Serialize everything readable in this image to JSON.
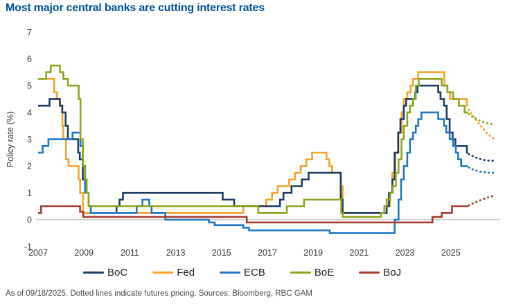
{
  "page": {
    "title": "Most major central banks are cutting interest rates",
    "footnote": "As of 09/18/2025. Dotted lines indicate futures pricing. Sources: Bloomberg, RBC GAM"
  },
  "colors": {
    "title": "#00519B",
    "footnote": "#4A4A4A",
    "axis_text": "#3B3B3B",
    "zero_line": "#C2C2C2"
  },
  "chart_data": {
    "type": "line",
    "title": "Most major central banks are cutting interest rates",
    "ylabel": "Policy rate (%)",
    "ylim": [
      -1,
      7
    ],
    "yticks": [
      -1,
      0,
      1,
      2,
      3,
      4,
      5,
      6,
      7
    ],
    "xticks": [
      2007,
      2009,
      2011,
      2013,
      2015,
      2017,
      2019,
      2021,
      2023,
      2025
    ],
    "xlim": [
      2007,
      2027.2
    ],
    "grid": "zero-line-only",
    "legend_position": "bottom",
    "note": "Step lines of policy rates; dotted segments are futures pricing beyond 09/18/2025",
    "series": [
      {
        "name": "BoC",
        "color": "#1C3C63",
        "solid": [
          [
            2007.0,
            4.25
          ],
          [
            2007.5,
            4.5
          ],
          [
            2007.95,
            4.25
          ],
          [
            2008.05,
            4.0
          ],
          [
            2008.2,
            3.5
          ],
          [
            2008.3,
            3.0
          ],
          [
            2008.75,
            2.5
          ],
          [
            2008.82,
            2.25
          ],
          [
            2008.95,
            1.5
          ],
          [
            2009.05,
            1.0
          ],
          [
            2009.2,
            0.5
          ],
          [
            2009.3,
            0.25
          ],
          [
            2010.42,
            0.5
          ],
          [
            2010.55,
            0.75
          ],
          [
            2010.7,
            1.0
          ],
          [
            2015.05,
            0.75
          ],
          [
            2015.55,
            0.5
          ],
          [
            2017.55,
            0.75
          ],
          [
            2017.7,
            1.0
          ],
          [
            2018.05,
            1.25
          ],
          [
            2018.5,
            1.5
          ],
          [
            2018.8,
            1.75
          ],
          [
            2020.2,
            0.75
          ],
          [
            2020.28,
            0.25
          ],
          [
            2022.2,
            0.5
          ],
          [
            2022.3,
            1.0
          ],
          [
            2022.45,
            1.5
          ],
          [
            2022.55,
            2.5
          ],
          [
            2022.7,
            3.25
          ],
          [
            2022.8,
            3.75
          ],
          [
            2022.95,
            4.25
          ],
          [
            2023.05,
            4.5
          ],
          [
            2023.45,
            4.75
          ],
          [
            2023.55,
            5.0
          ],
          [
            2024.45,
            4.75
          ],
          [
            2024.55,
            4.5
          ],
          [
            2024.7,
            4.25
          ],
          [
            2024.82,
            3.75
          ],
          [
            2024.95,
            3.25
          ],
          [
            2025.08,
            3.0
          ],
          [
            2025.2,
            2.75
          ],
          [
            2025.7,
            2.5
          ]
        ],
        "solid_end": 2025.75,
        "dotted": [
          [
            2025.78,
            2.45
          ],
          [
            2025.95,
            2.38
          ],
          [
            2026.12,
            2.31
          ],
          [
            2026.3,
            2.26
          ],
          [
            2026.5,
            2.22
          ],
          [
            2026.7,
            2.2
          ],
          [
            2026.9,
            2.2
          ]
        ]
      },
      {
        "name": "Fed",
        "color": "#F7A228",
        "solid": [
          [
            2007.0,
            5.25
          ],
          [
            2007.7,
            4.75
          ],
          [
            2007.82,
            4.5
          ],
          [
            2007.95,
            4.25
          ],
          [
            2008.06,
            3.5
          ],
          [
            2008.1,
            3.0
          ],
          [
            2008.22,
            2.25
          ],
          [
            2008.33,
            2.0
          ],
          [
            2008.77,
            1.5
          ],
          [
            2008.83,
            1.0
          ],
          [
            2008.96,
            0.25
          ],
          [
            2015.95,
            0.5
          ],
          [
            2016.95,
            0.75
          ],
          [
            2017.2,
            1.0
          ],
          [
            2017.45,
            1.25
          ],
          [
            2017.95,
            1.5
          ],
          [
            2018.2,
            1.75
          ],
          [
            2018.45,
            2.0
          ],
          [
            2018.7,
            2.25
          ],
          [
            2018.95,
            2.5
          ],
          [
            2019.58,
            2.25
          ],
          [
            2019.7,
            2.0
          ],
          [
            2019.82,
            1.75
          ],
          [
            2020.2,
            1.25
          ],
          [
            2020.28,
            0.25
          ],
          [
            2022.2,
            0.5
          ],
          [
            2022.35,
            1.0
          ],
          [
            2022.45,
            1.75
          ],
          [
            2022.58,
            2.5
          ],
          [
            2022.72,
            3.25
          ],
          [
            2022.85,
            4.0
          ],
          [
            2022.95,
            4.5
          ],
          [
            2023.1,
            4.75
          ],
          [
            2023.25,
            5.0
          ],
          [
            2023.35,
            5.25
          ],
          [
            2023.57,
            5.5
          ],
          [
            2024.72,
            5.0
          ],
          [
            2024.85,
            4.75
          ],
          [
            2024.97,
            4.5
          ],
          [
            2025.7,
            4.25
          ]
        ],
        "solid_end": 2025.75,
        "dotted": [
          [
            2025.78,
            4.1
          ],
          [
            2025.95,
            3.9
          ],
          [
            2026.12,
            3.7
          ],
          [
            2026.3,
            3.5
          ],
          [
            2026.45,
            3.35
          ],
          [
            2026.6,
            3.2
          ],
          [
            2026.75,
            3.1
          ],
          [
            2026.9,
            3.0
          ]
        ]
      },
      {
        "name": "ECB",
        "color": "#2277C3",
        "solid": [
          [
            2007.0,
            2.5
          ],
          [
            2007.2,
            2.75
          ],
          [
            2007.45,
            3.0
          ],
          [
            2008.5,
            3.25
          ],
          [
            2008.85,
            2.75
          ],
          [
            2008.95,
            2.0
          ],
          [
            2009.05,
            1.0
          ],
          [
            2009.2,
            0.5
          ],
          [
            2009.3,
            0.25
          ],
          [
            2011.3,
            0.5
          ],
          [
            2011.55,
            0.75
          ],
          [
            2011.85,
            0.5
          ],
          [
            2011.95,
            0.25
          ],
          [
            2012.55,
            0.0
          ],
          [
            2014.45,
            -0.1
          ],
          [
            2014.7,
            -0.2
          ],
          [
            2015.95,
            -0.3
          ],
          [
            2016.2,
            -0.4
          ],
          [
            2019.72,
            -0.5
          ],
          [
            2022.55,
            0.0
          ],
          [
            2022.72,
            0.75
          ],
          [
            2022.83,
            1.5
          ],
          [
            2022.95,
            2.0
          ],
          [
            2023.1,
            2.5
          ],
          [
            2023.22,
            3.0
          ],
          [
            2023.35,
            3.25
          ],
          [
            2023.47,
            3.5
          ],
          [
            2023.58,
            3.75
          ],
          [
            2023.72,
            4.0
          ],
          [
            2024.45,
            3.75
          ],
          [
            2024.7,
            3.5
          ],
          [
            2024.8,
            3.25
          ],
          [
            2024.95,
            3.0
          ],
          [
            2025.1,
            2.75
          ],
          [
            2025.22,
            2.5
          ],
          [
            2025.32,
            2.25
          ],
          [
            2025.45,
            2.0
          ]
        ],
        "solid_end": 2025.75,
        "dotted": [
          [
            2025.78,
            1.95
          ],
          [
            2025.95,
            1.88
          ],
          [
            2026.12,
            1.83
          ],
          [
            2026.3,
            1.79
          ],
          [
            2026.5,
            1.77
          ],
          [
            2026.7,
            1.75
          ],
          [
            2026.9,
            1.75
          ]
        ]
      },
      {
        "name": "BoE",
        "color": "#8DA51E",
        "solid": [
          [
            2007.0,
            5.25
          ],
          [
            2007.35,
            5.5
          ],
          [
            2007.55,
            5.75
          ],
          [
            2007.95,
            5.5
          ],
          [
            2008.1,
            5.25
          ],
          [
            2008.3,
            5.0
          ],
          [
            2008.77,
            4.5
          ],
          [
            2008.85,
            3.0
          ],
          [
            2008.95,
            2.0
          ],
          [
            2009.04,
            1.5
          ],
          [
            2009.12,
            1.0
          ],
          [
            2009.2,
            0.5
          ],
          [
            2016.6,
            0.25
          ],
          [
            2017.85,
            0.5
          ],
          [
            2018.6,
            0.75
          ],
          [
            2020.22,
            0.25
          ],
          [
            2020.28,
            0.1
          ],
          [
            2021.95,
            0.25
          ],
          [
            2022.1,
            0.5
          ],
          [
            2022.2,
            0.75
          ],
          [
            2022.35,
            1.0
          ],
          [
            2022.47,
            1.25
          ],
          [
            2022.6,
            1.75
          ],
          [
            2022.72,
            2.25
          ],
          [
            2022.85,
            3.0
          ],
          [
            2022.95,
            3.5
          ],
          [
            2023.1,
            4.0
          ],
          [
            2023.22,
            4.25
          ],
          [
            2023.35,
            4.5
          ],
          [
            2023.47,
            5.0
          ],
          [
            2023.6,
            5.25
          ],
          [
            2024.6,
            5.0
          ],
          [
            2024.85,
            4.75
          ],
          [
            2025.1,
            4.5
          ],
          [
            2025.35,
            4.25
          ],
          [
            2025.6,
            4.0
          ]
        ],
        "solid_end": 2025.75,
        "dotted": [
          [
            2025.78,
            3.95
          ],
          [
            2025.95,
            3.85
          ],
          [
            2026.12,
            3.75
          ],
          [
            2026.3,
            3.68
          ],
          [
            2026.5,
            3.62
          ],
          [
            2026.7,
            3.58
          ],
          [
            2026.9,
            3.55
          ]
        ]
      },
      {
        "name": "BoJ",
        "color": "#A33E2E",
        "solid": [
          [
            2007.0,
            0.25
          ],
          [
            2007.13,
            0.5
          ],
          [
            2008.83,
            0.3
          ],
          [
            2008.97,
            0.1
          ],
          [
            2016.1,
            -0.1
          ],
          [
            2024.2,
            0.1
          ],
          [
            2024.6,
            0.25
          ],
          [
            2025.05,
            0.5
          ]
        ],
        "solid_end": 2025.75,
        "dotted": [
          [
            2025.78,
            0.53
          ],
          [
            2025.95,
            0.6
          ],
          [
            2026.12,
            0.67
          ],
          [
            2026.3,
            0.73
          ],
          [
            2026.5,
            0.8
          ],
          [
            2026.7,
            0.85
          ],
          [
            2026.9,
            0.9
          ]
        ]
      }
    ]
  }
}
